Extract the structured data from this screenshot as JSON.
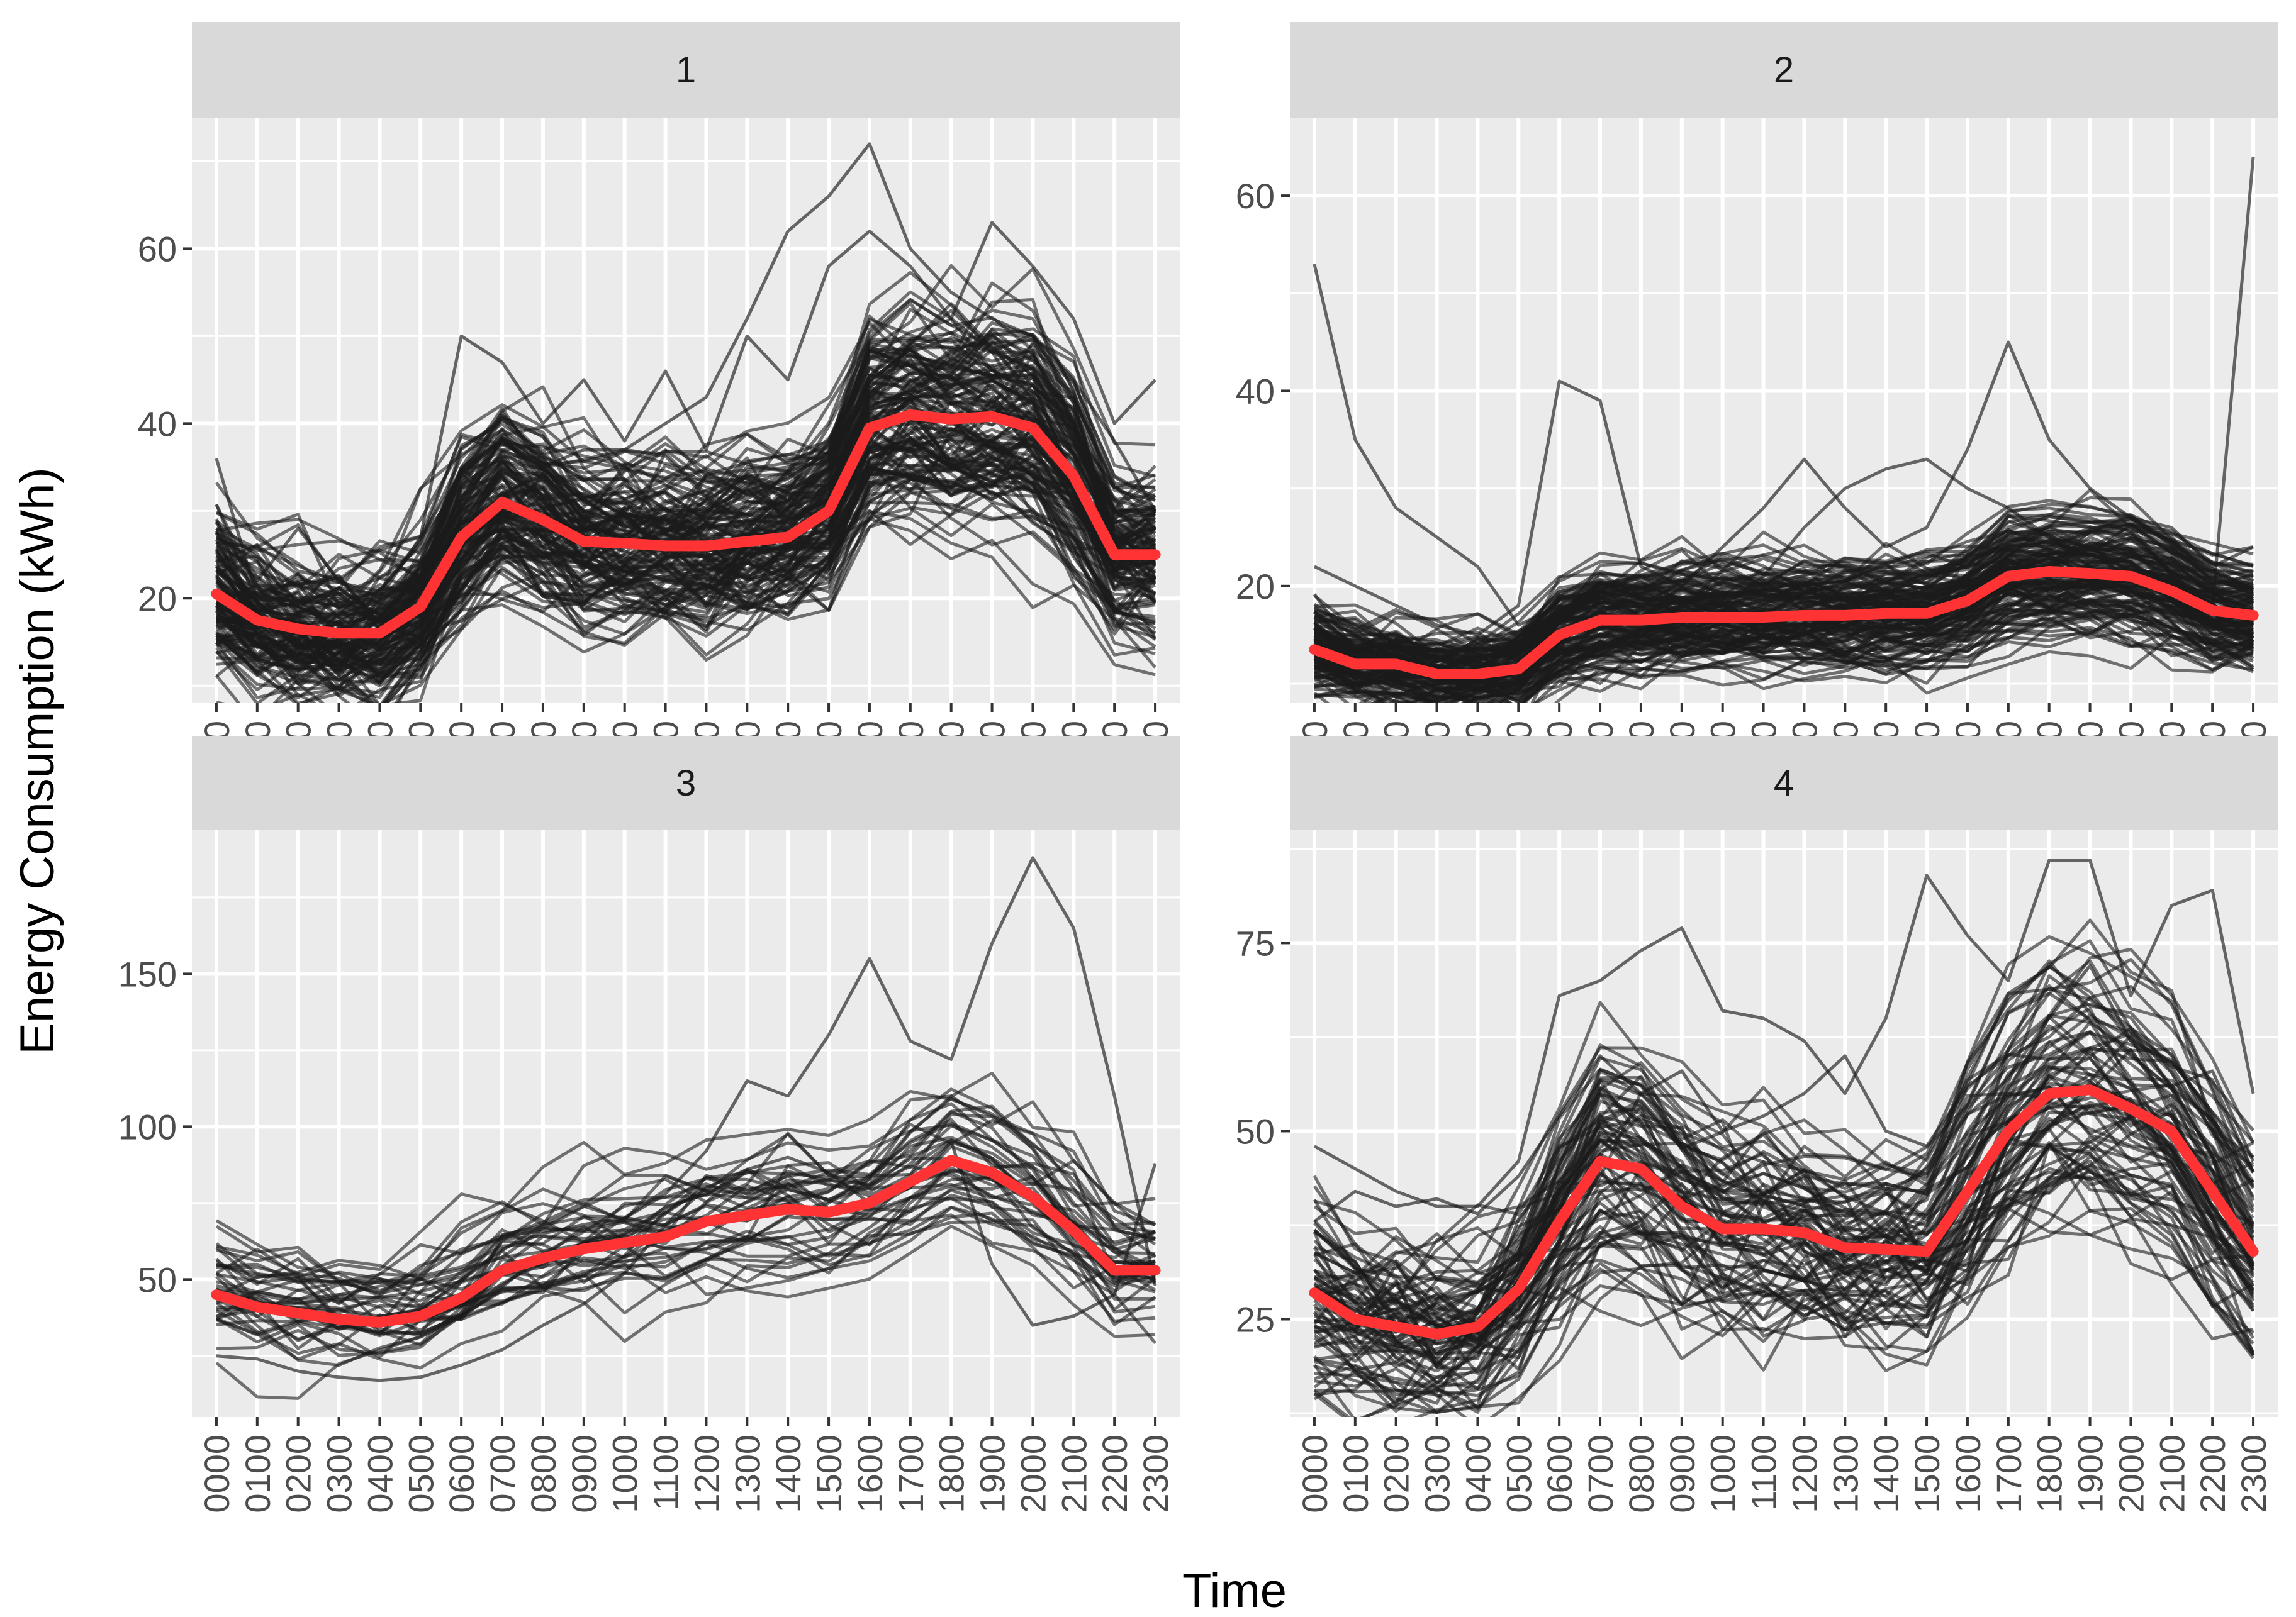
{
  "chart_data": {
    "type": "line",
    "xlabel": "Time",
    "ylabel": "Energy Consumption (kWh)",
    "x": [
      "0000",
      "0100",
      "0200",
      "0300",
      "0400",
      "0500",
      "0600",
      "0700",
      "0800",
      "0900",
      "1000",
      "1100",
      "1200",
      "1300",
      "1400",
      "1500",
      "1600",
      "1700",
      "1800",
      "1900",
      "2000",
      "2100",
      "2200",
      "2300"
    ],
    "colors": {
      "panel_bg": "#ebebeb",
      "grid": "#ffffff",
      "strip_bg": "#d9d9d9",
      "lines": "#1a1a1a",
      "mean": "#ff3333"
    },
    "panels": [
      {
        "label": "1",
        "ylim": [
          8,
          75
        ],
        "yticks": [
          20,
          40,
          60
        ],
        "noise_sd": 4.5,
        "n_lines": 140,
        "mean": [
          20.5,
          17.5,
          16.5,
          16,
          16,
          19,
          27,
          31,
          29,
          26.5,
          26.3,
          26,
          26,
          26.5,
          27,
          30,
          39.5,
          41,
          40.5,
          40.8,
          39.5,
          34,
          25,
          25
        ],
        "highlights": [
          [
            36,
            20,
            19,
            17,
            18,
            22,
            35,
            38,
            35,
            37,
            37,
            40,
            43,
            52,
            62,
            66,
            72,
            60,
            55,
            52,
            50,
            45,
            38,
            30
          ],
          [
            28,
            22,
            28,
            22,
            20,
            27,
            50,
            47,
            40,
            45,
            38,
            46,
            37,
            50,
            45,
            58,
            62,
            58,
            52,
            63,
            58,
            52,
            40,
            45
          ]
        ]
      },
      {
        "label": "2",
        "ylim": [
          8,
          68
        ],
        "yticks": [
          20,
          40,
          60
        ],
        "noise_sd": 2.2,
        "n_lines": 140,
        "mean": [
          13.5,
          12,
          12,
          11,
          11,
          11.5,
          15,
          16.5,
          16.5,
          16.8,
          16.8,
          16.8,
          17,
          17,
          17.2,
          17.2,
          18.5,
          21,
          21.5,
          21.3,
          21,
          19.5,
          17.5,
          17
        ],
        "highlights": [
          [
            53,
            35,
            28,
            25,
            22,
            16,
            18,
            20,
            19,
            17,
            18,
            21,
            26,
            30,
            32,
            33,
            30,
            28,
            25,
            22,
            20,
            18,
            18,
            64
          ],
          [
            22,
            20,
            18,
            16,
            15,
            18,
            41,
            39,
            22,
            20,
            24,
            28,
            33,
            28,
            24,
            26,
            34,
            45,
            35,
            30,
            27,
            26,
            22,
            24
          ]
        ]
      },
      {
        "label": "3",
        "ylim": [
          5,
          197
        ],
        "yticks": [
          50,
          100,
          150
        ],
        "noise_sd": 9,
        "n_lines": 40,
        "mean": [
          45,
          41,
          39,
          37,
          36,
          38,
          44,
          53,
          57,
          60,
          62,
          64,
          69,
          71,
          73,
          72,
          75,
          82,
          89,
          85,
          77,
          66,
          53,
          53
        ],
        "highlights": [
          [
            44,
            40,
            41,
            40,
            38,
            40,
            50,
            60,
            65,
            68,
            70,
            78,
            92,
            115,
            110,
            130,
            155,
            128,
            122,
            160,
            188,
            165,
            110,
            48
          ],
          [
            25,
            24,
            20,
            18,
            17,
            18,
            22,
            27,
            35,
            42,
            52,
            68,
            80,
            86,
            90,
            85,
            75,
            80,
            95,
            55,
            35,
            38,
            45,
            88
          ]
        ]
      },
      {
        "label": "4",
        "ylim": [
          12,
          90
        ],
        "yticks": [
          25,
          50,
          75
        ],
        "noise_sd": 6,
        "n_lines": 80,
        "mean": [
          28.5,
          25,
          24,
          23,
          24,
          29,
          38,
          46,
          45,
          40,
          37,
          37,
          36.5,
          34.5,
          34.3,
          34,
          42,
          50,
          55,
          55.5,
          53,
          50,
          42,
          34
        ],
        "highlights": [
          [
            48,
            45,
            42,
            40,
            40,
            46,
            68,
            70,
            74,
            77,
            66,
            65,
            62,
            55,
            65,
            84,
            76,
            70,
            86,
            86,
            68,
            80,
            82,
            55
          ],
          [
            38,
            42,
            40,
            41,
            39,
            44,
            52,
            60,
            55,
            58,
            50,
            52,
            55,
            60,
            50,
            48,
            56,
            60,
            65,
            72,
            62,
            56,
            58,
            46
          ]
        ]
      }
    ]
  }
}
